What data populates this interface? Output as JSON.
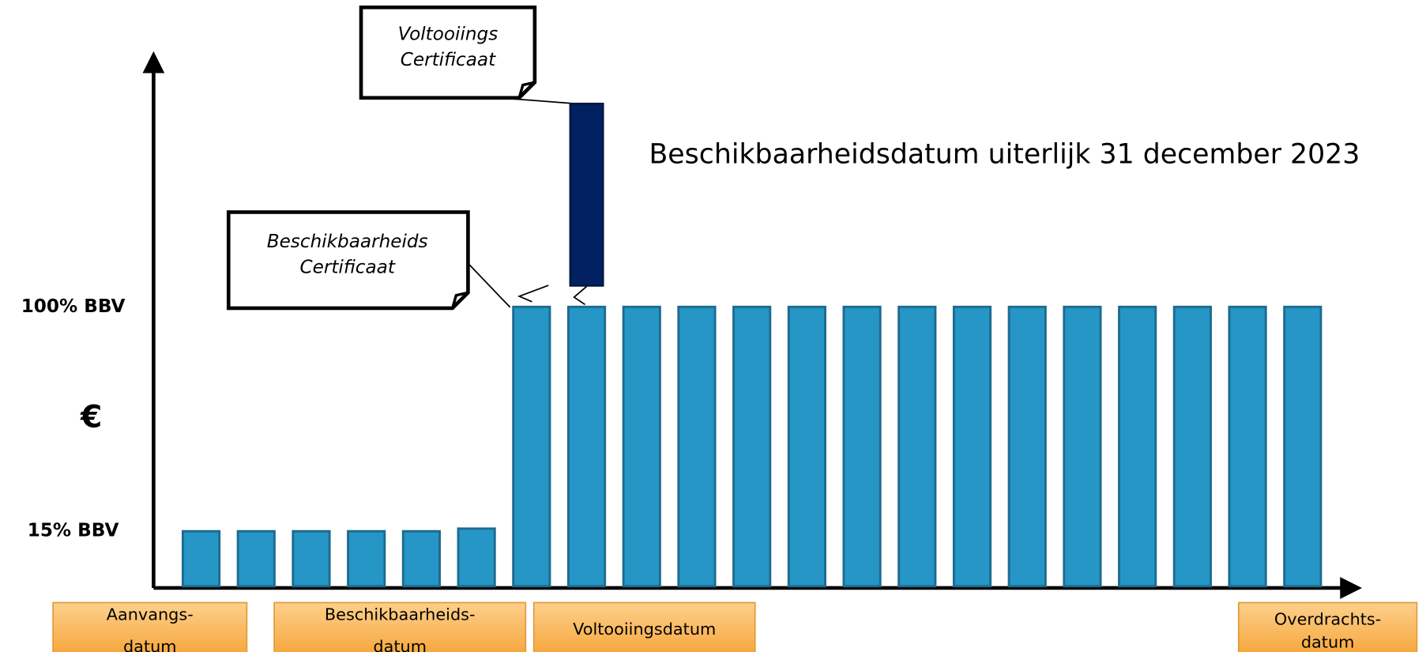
{
  "chart_data": {
    "type": "bar",
    "title": "Beschikbaarheidsdatum uiterlijk 31 december 2023",
    "y_label": "€",
    "categories": [
      null,
      null,
      null,
      null,
      null,
      null,
      null,
      null,
      null,
      null,
      null,
      null,
      null,
      null,
      null,
      null,
      null,
      null,
      null,
      null,
      null
    ],
    "values": [
      15,
      15,
      15,
      15,
      15,
      16,
      100,
      100,
      100,
      100,
      100,
      100,
      100,
      100,
      100,
      100,
      100,
      100,
      100,
      100,
      100
    ],
    "color": "#2596c6",
    "ylim": [
      -6.5,
      192
    ],
    "yticks": [
      {
        "value": 15,
        "label": "15% BBV"
      },
      {
        "value": 100,
        "label": "100% BBV"
      }
    ],
    "floating_bar": {
      "at": 7,
      "low": 108,
      "high": 177,
      "color": "#002060"
    },
    "callouts": [
      {
        "lines": [
          "Voltooiings",
          "Certificaat"
        ]
      },
      {
        "lines": [
          "Beschikbaarheids",
          "Certificaat"
        ]
      }
    ],
    "milestones": [
      {
        "lines": [
          "Aanvangs-",
          "datum"
        ]
      },
      {
        "lines": [
          "Beschikbaarheids-",
          "datum"
        ]
      },
      {
        "lines": [
          "Voltooiingsdatum"
        ]
      },
      {
        "lines": [
          "Overdrachts-",
          "datum"
        ]
      }
    ]
  }
}
